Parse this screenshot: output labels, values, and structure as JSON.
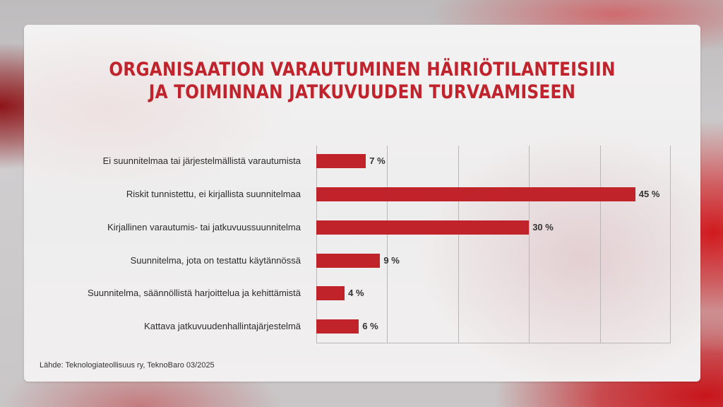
{
  "title": {
    "line1": "ORGANISAATION VARAUTUMINEN HÄIRIÖTILANTEISIIN",
    "line2": "JA TOIMINNAN JATKUVUUDEN TURVAAMISEEN"
  },
  "source": "Lähde: Teknologiateollisuus ry, TeknoBaro 03/2025",
  "colors": {
    "accent": "#c0232b",
    "bar": "#c1232a",
    "text": "#2b2b2b",
    "grid": "#b9b7b8"
  },
  "chart_data": {
    "type": "bar",
    "orientation": "horizontal",
    "title": "ORGANISAATION VARAUTUMINEN HÄIRIÖTILANTEISIIN JA TOIMINNAN JATKUVUUDEN TURVAAMISEEN",
    "categories": [
      "Ei suunnitelmaa tai järjestelmällistä varautumista",
      "Riskit tunnistettu, ei kirjallista suunnitelmaa",
      "Kirjallinen varautumis- tai jatkuvuussuunnitelma",
      "Suunnitelma, jota on testattu käytännössä",
      "Suunnitelma, säännöllistä harjoittelua ja kehittämistä",
      "Kattava jatkuvuudenhallintajärjestelmä"
    ],
    "values": [
      7,
      45,
      30,
      9,
      4,
      6
    ],
    "value_labels": [
      "7 %",
      "45 %",
      "30 %",
      "9 %",
      "4 %",
      "6 %"
    ],
    "unit": "%",
    "xlabel": "",
    "ylabel": "",
    "xlim": [
      0,
      50
    ],
    "grid": true,
    "gridlines_at": [
      0,
      10,
      20,
      30,
      40,
      50
    ],
    "tick_labels_shown": false,
    "legend": "none",
    "source": "Lähde: Teknologiateollisuus ry, TeknoBaro 03/2025"
  }
}
